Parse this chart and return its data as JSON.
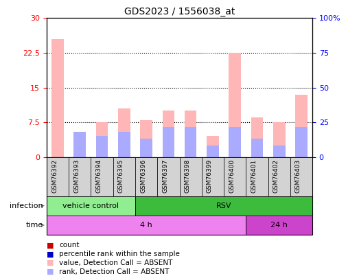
{
  "title": "GDS2023 / 1556038_at",
  "samples": [
    "GSM76392",
    "GSM76393",
    "GSM76394",
    "GSM76395",
    "GSM76396",
    "GSM76397",
    "GSM76398",
    "GSM76399",
    "GSM76400",
    "GSM76401",
    "GSM76402",
    "GSM76403"
  ],
  "pink_bars": [
    25.5,
    5.5,
    7.5,
    10.5,
    8.0,
    10.0,
    10.0,
    4.5,
    22.5,
    8.5,
    7.5,
    13.5
  ],
  "blue_bars": [
    0.0,
    5.5,
    4.5,
    5.5,
    4.0,
    6.5,
    6.5,
    2.5,
    6.5,
    4.0,
    2.5,
    6.5
  ],
  "ylim_left": [
    0,
    30
  ],
  "ylim_right": [
    0,
    100
  ],
  "yticks_left": [
    0,
    7.5,
    15,
    22.5,
    30
  ],
  "yticks_right": [
    0,
    25,
    50,
    75,
    100
  ],
  "ytick_labels_left": [
    "0",
    "7.5",
    "15",
    "22.5",
    "30"
  ],
  "ytick_labels_right": [
    "0",
    "25",
    "50",
    "75",
    "100%"
  ],
  "infection_labels": [
    {
      "text": "vehicle control",
      "start": 0,
      "end": 4,
      "color": "#90ee90"
    },
    {
      "text": "RSV",
      "start": 4,
      "end": 12,
      "color": "#3dbb3d"
    }
  ],
  "time_labels": [
    {
      "text": "4 h",
      "start": 0,
      "end": 9,
      "color": "#ee82ee"
    },
    {
      "text": "24 h",
      "start": 9,
      "end": 12,
      "color": "#cc44cc"
    }
  ],
  "bar_width": 0.55,
  "pink_color": "#ffb6b6",
  "blue_color": "#aaaaff",
  "red_color": "#cc0000",
  "dark_blue_color": "#0000cc",
  "bg_color": "#ffffff",
  "legend_items": [
    {
      "label": "count",
      "color": "#cc0000"
    },
    {
      "label": "percentile rank within the sample",
      "color": "#0000cc"
    },
    {
      "label": "value, Detection Call = ABSENT",
      "color": "#ffb6b6"
    },
    {
      "label": "rank, Detection Call = ABSENT",
      "color": "#aaaaff"
    }
  ]
}
